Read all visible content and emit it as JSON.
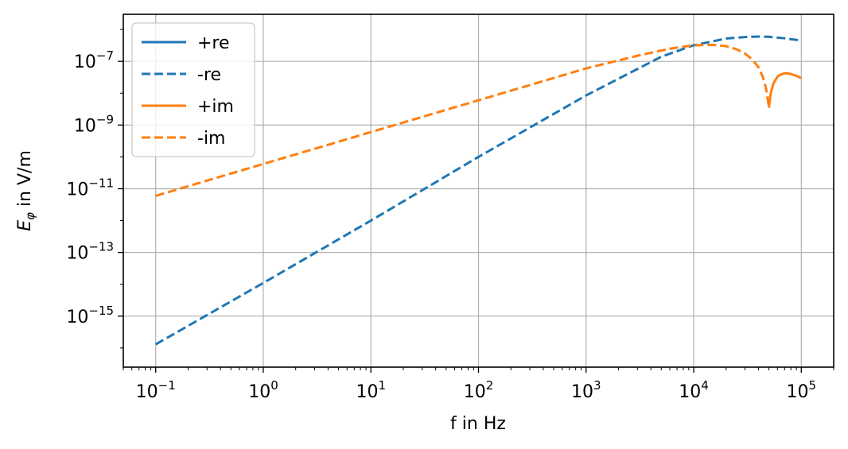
{
  "chart_data": {
    "type": "line",
    "title": "",
    "xlabel": "f in Hz",
    "ylabel_main": "E",
    "ylabel_sub": "φ",
    "ylabel_rest": " in V/m",
    "xscale": "log",
    "yscale": "log",
    "xlim": [
      0.05,
      200000
    ],
    "ylim": [
      2.5e-17,
      3e-06
    ],
    "x_ticks": [
      {
        "value": 0.1,
        "base": "10",
        "exp": "−1"
      },
      {
        "value": 1,
        "base": "10",
        "exp": "0"
      },
      {
        "value": 10,
        "base": "10",
        "exp": "1"
      },
      {
        "value": 100,
        "base": "10",
        "exp": "2"
      },
      {
        "value": 1000,
        "base": "10",
        "exp": "3"
      },
      {
        "value": 10000,
        "base": "10",
        "exp": "4"
      },
      {
        "value": 100000,
        "base": "10",
        "exp": "5"
      }
    ],
    "y_ticks": [
      {
        "value": 1e-15,
        "base": "10",
        "exp": "−15"
      },
      {
        "value": 1e-13,
        "base": "10",
        "exp": "−13"
      },
      {
        "value": 1e-11,
        "base": "10",
        "exp": "−11"
      },
      {
        "value": 1e-09,
        "base": "10",
        "exp": "−9"
      },
      {
        "value": 1e-07,
        "base": "10",
        "exp": "−7"
      }
    ],
    "grid": true,
    "legend_position": "top-left",
    "legend": [
      {
        "label": "+re",
        "color": "#1f77b4",
        "dash": false
      },
      {
        "label": "-re",
        "color": "#1f77b4",
        "dash": true
      },
      {
        "label": "+im",
        "color": "#ff7f0e",
        "dash": false
      },
      {
        "label": "-im",
        "color": "#ff7f0e",
        "dash": true
      }
    ],
    "series": [
      {
        "name": "-re",
        "color": "#1f77b4",
        "dash": true,
        "x": [
          0.1,
          1,
          10,
          100,
          1000,
          5000,
          10000,
          20000,
          30000,
          40000,
          50000,
          70000,
          100000
        ],
        "y": [
          1.3e-16,
          1.1e-14,
          1e-12,
          1e-10,
          8.5e-09,
          1.4e-07,
          3.2e-07,
          5.2e-07,
          5.8e-07,
          6e-07,
          5.9e-07,
          5.3e-07,
          4.5e-07
        ]
      },
      {
        "name": "-im",
        "color": "#ff7f0e",
        "dash": true,
        "x": [
          0.1,
          1,
          10,
          100,
          1000,
          3000,
          6000,
          10000,
          15000,
          20000,
          25000,
          30000,
          35000,
          40000,
          44000,
          47000,
          49000,
          50000
        ],
        "y": [
          6e-12,
          6e-11,
          6e-10,
          6e-09,
          6e-08,
          1.5e-07,
          2.5e-07,
          3.2e-07,
          3.3e-07,
          3e-07,
          2.4e-07,
          1.75e-07,
          1.15e-07,
          6.5e-08,
          3.2e-08,
          1.4e-08,
          6e-09,
          3.5e-09
        ]
      },
      {
        "name": "+im",
        "color": "#ff7f0e",
        "dash": false,
        "x": [
          50000,
          52000,
          55000,
          60000,
          65000,
          70000,
          75000,
          80000,
          90000,
          100000
        ],
        "y": [
          3.5e-09,
          1e-08,
          2e-08,
          3.3e-08,
          3.9e-08,
          4.2e-08,
          4.2e-08,
          4e-08,
          3.5e-08,
          3e-08
        ]
      }
    ]
  }
}
